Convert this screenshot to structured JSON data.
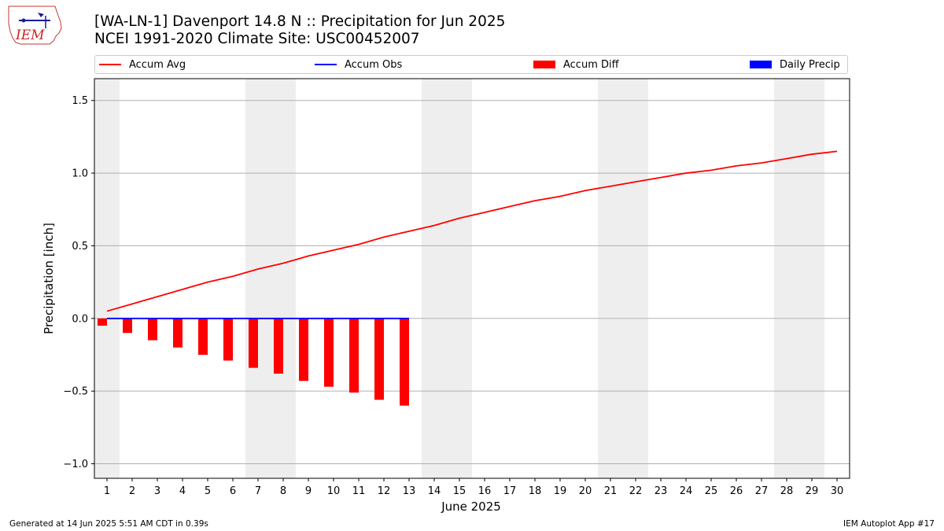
{
  "header": {
    "title": "[WA-LN-1] Davenport 14.8 N :: Precipitation for Jun 2025",
    "subtitle": "NCEI 1991-2020 Climate Site: USC00452007",
    "logo_text": "IEM"
  },
  "legend": {
    "items": [
      {
        "label": "Accum Avg",
        "color": "#ff0000",
        "kind": "line"
      },
      {
        "label": "Accum Obs",
        "color": "#0000ff",
        "kind": "line"
      },
      {
        "label": "Accum Diff",
        "color": "#ff0000",
        "kind": "box"
      },
      {
        "label": "Daily Precip",
        "color": "#0000ff",
        "kind": "box"
      }
    ]
  },
  "chart_data": {
    "type": "line",
    "xlabel": "June 2025",
    "ylabel": "Precipitation [inch]",
    "xlim": [
      0.5,
      30.5
    ],
    "ylim": [
      -1.1,
      1.65
    ],
    "yticks": [
      -1.0,
      -0.5,
      0.0,
      0.5,
      1.0,
      1.5
    ],
    "ytick_labels": [
      "−1.0",
      "−0.5",
      "0.0",
      "0.5",
      "1.0",
      "1.5"
    ],
    "x": [
      1,
      2,
      3,
      4,
      5,
      6,
      7,
      8,
      9,
      10,
      11,
      12,
      13,
      14,
      15,
      16,
      17,
      18,
      19,
      20,
      21,
      22,
      23,
      24,
      25,
      26,
      27,
      28,
      29,
      30
    ],
    "weekend_days": [
      1,
      7,
      8,
      14,
      15,
      21,
      22,
      28,
      29
    ],
    "grid": "horizontal",
    "series": [
      {
        "name": "Accum Avg",
        "type": "line",
        "color": "#ff0000",
        "x": [
          1,
          2,
          3,
          4,
          5,
          6,
          7,
          8,
          9,
          10,
          11,
          12,
          13,
          14,
          15,
          16,
          17,
          18,
          19,
          20,
          21,
          22,
          23,
          24,
          25,
          26,
          27,
          28,
          29,
          30
        ],
        "values": [
          0.05,
          0.1,
          0.15,
          0.2,
          0.25,
          0.29,
          0.34,
          0.38,
          0.43,
          0.47,
          0.51,
          0.56,
          0.6,
          0.64,
          0.69,
          0.73,
          0.77,
          0.81,
          0.84,
          0.88,
          0.91,
          0.94,
          0.97,
          1.0,
          1.02,
          1.05,
          1.07,
          1.1,
          1.13,
          1.15
        ]
      },
      {
        "name": "Accum Obs",
        "type": "line",
        "color": "#0000ff",
        "x": [
          1,
          2,
          3,
          4,
          5,
          6,
          7,
          8,
          9,
          10,
          11,
          12,
          13
        ],
        "values": [
          0,
          0,
          0,
          0,
          0,
          0,
          0,
          0,
          0,
          0,
          0,
          0,
          0
        ]
      },
      {
        "name": "Accum Diff",
        "type": "bar",
        "color": "#ff0000",
        "x": [
          1,
          2,
          3,
          4,
          5,
          6,
          7,
          8,
          9,
          10,
          11,
          12,
          13
        ],
        "values": [
          -0.05,
          -0.1,
          -0.15,
          -0.2,
          -0.25,
          -0.29,
          -0.34,
          -0.38,
          -0.43,
          -0.47,
          -0.51,
          -0.56,
          -0.6
        ]
      },
      {
        "name": "Daily Precip",
        "type": "bar",
        "color": "#0000ff",
        "x": [
          1,
          2,
          3,
          4,
          5,
          6,
          7,
          8,
          9,
          10,
          11,
          12,
          13
        ],
        "values": [
          0,
          0,
          0,
          0,
          0,
          0,
          0,
          0,
          0,
          0,
          0,
          0,
          0
        ]
      }
    ]
  },
  "footer": {
    "generated": "Generated at 14 Jun 2025 5:51 AM CDT in 0.39s",
    "app": "IEM Autoplot App #17"
  }
}
